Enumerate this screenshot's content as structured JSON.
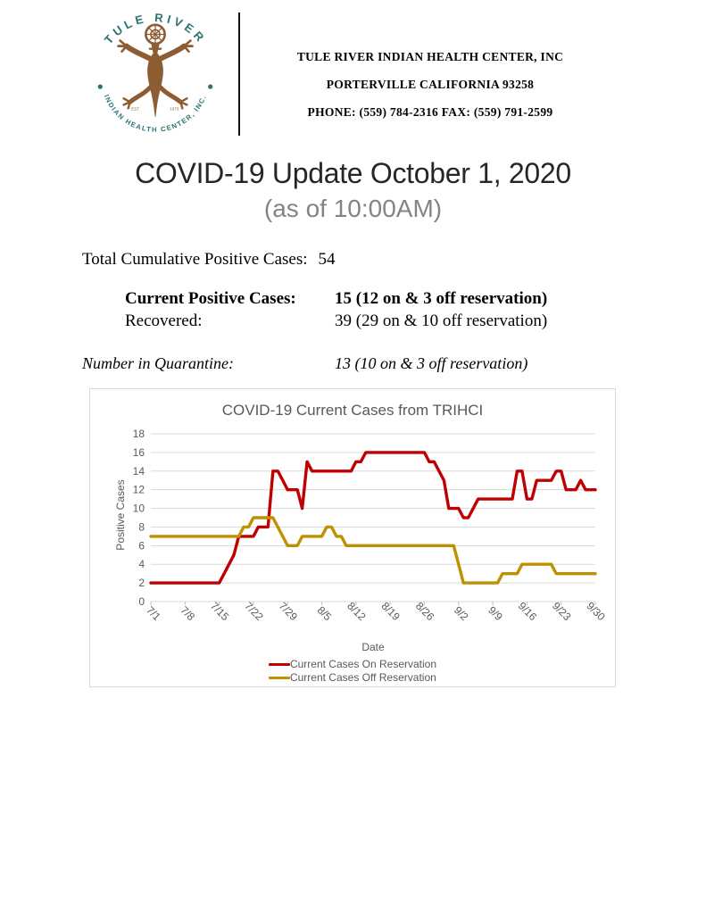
{
  "header": {
    "logo": {
      "arc_top": "TULE RIVER",
      "arc_bottom": "INDIAN HEALTH CENTER, INC.",
      "est_left": "EST.",
      "est_right": "1973",
      "teal": "#2a7474",
      "brown": "#8e5c33"
    },
    "org_name": "TULE RIVER INDIAN HEALTH CENTER, INC",
    "address": "PORTERVILLE CALIFORNIA 93258",
    "phone_fax": "PHONE: (559) 784-2316 FAX: (559) 791-2599"
  },
  "title": "COVID-19 Update October 1, 2020",
  "subtitle": "(as of 10:00AM)",
  "stats": {
    "total_label": "Total Cumulative Positive Cases:",
    "total_value": "54",
    "current_label": "Current Positive Cases:",
    "current_value": "15 (12 on & 3 off reservation)",
    "recovered_label": "Recovered:",
    "recovered_value": "39 (29 on & 10 off reservation)",
    "quarantine_label": "Number in Quarantine:",
    "quarantine_value": "13 (10 on & 3 off reservation)"
  },
  "chart_data": {
    "type": "line",
    "title": "COVID-19 Current Cases from TRIHCI",
    "xlabel": "Date",
    "ylabel": "Positive Cases",
    "ylim": [
      0,
      18
    ],
    "yticks": [
      0,
      2,
      4,
      6,
      8,
      10,
      12,
      14,
      16,
      18
    ],
    "grid": true,
    "legend_position": "bottom",
    "x_tick_labels": [
      "7/1",
      "7/8",
      "7/15",
      "7/22",
      "7/29",
      "8/5",
      "8/12",
      "8/19",
      "8/26",
      "9/2",
      "9/9",
      "9/16",
      "9/23",
      "9/30"
    ],
    "x_frequency": "daily",
    "series": [
      {
        "name": "Current Cases On Reservation",
        "color": "#C00000",
        "values": [
          2,
          2,
          2,
          2,
          2,
          2,
          2,
          2,
          2,
          2,
          2,
          2,
          2,
          2,
          2,
          3,
          4,
          5,
          7,
          7,
          7,
          7,
          8,
          8,
          8,
          14,
          14,
          13,
          12,
          12,
          12,
          10,
          15,
          14,
          14,
          14,
          14,
          14,
          14,
          14,
          14,
          14,
          15,
          15,
          16,
          16,
          16,
          16,
          16,
          16,
          16,
          16,
          16,
          16,
          16,
          16,
          16,
          15,
          15,
          14,
          13,
          10,
          10,
          10,
          9,
          9,
          10,
          11,
          11,
          11,
          11,
          11,
          11,
          11,
          11,
          14,
          14,
          11,
          11,
          13,
          13,
          13,
          13,
          14,
          14,
          12,
          12,
          12,
          13,
          12,
          12,
          12
        ]
      },
      {
        "name": "Current Cases Off Reservation",
        "color": "#BF9000",
        "values": [
          7,
          7,
          7,
          7,
          7,
          7,
          7,
          7,
          7,
          7,
          7,
          7,
          7,
          7,
          7,
          7,
          7,
          7,
          7,
          8,
          8,
          9,
          9,
          9,
          9,
          9,
          8,
          7,
          6,
          6,
          6,
          7,
          7,
          7,
          7,
          7,
          8,
          8,
          7,
          7,
          6,
          6,
          6,
          6,
          6,
          6,
          6,
          6,
          6,
          6,
          6,
          6,
          6,
          6,
          6,
          6,
          6,
          6,
          6,
          6,
          6,
          6,
          6,
          4,
          2,
          2,
          2,
          2,
          2,
          2,
          2,
          2,
          3,
          3,
          3,
          3,
          4,
          4,
          4,
          4,
          4,
          4,
          4,
          3,
          3,
          3,
          3,
          3,
          3,
          3,
          3,
          3
        ]
      }
    ]
  }
}
